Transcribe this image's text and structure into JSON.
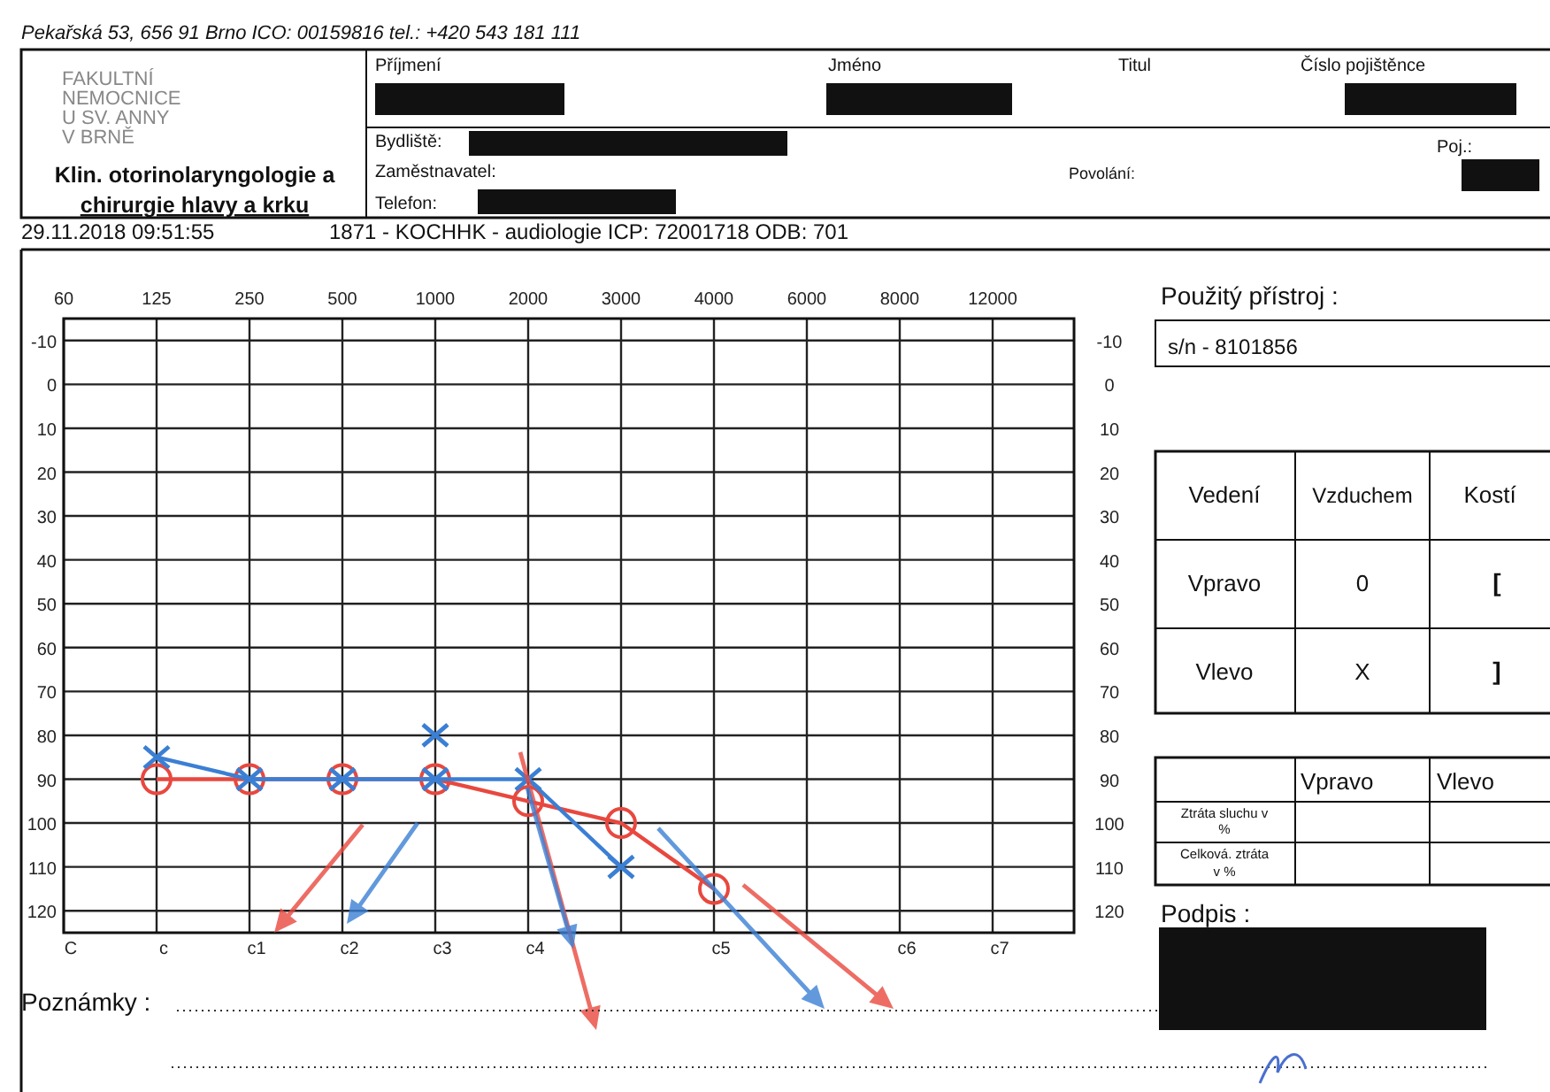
{
  "chart_data": [
    {
      "type": "line",
      "categories": [
        "60",
        "125",
        "250",
        "500",
        "1000",
        "2000",
        "3000",
        "4000",
        "6000",
        "8000",
        "12000"
      ],
      "series": [
        {
          "type": "line",
          "color": "#e8483f",
          "marker": "circle",
          "values": [
            null,
            90,
            90,
            90,
            90,
            95,
            100,
            115,
            null,
            null,
            null
          ]
        },
        {
          "type": "line",
          "color": "#3b7fd4",
          "marker": "cross",
          "values": [
            null,
            85,
            90,
            90,
            90,
            90,
            110,
            null,
            null,
            null,
            null
          ]
        },
        {
          "type": "scatter",
          "color": "#3b7fd4",
          "marker": "cross",
          "values": [
            null,
            null,
            null,
            null,
            80,
            null,
            null,
            null,
            null,
            null,
            null
          ]
        }
      ],
      "ylim": [
        125,
        -15
      ],
      "yticks": [
        -10,
        0,
        10,
        20,
        30,
        40,
        50,
        60,
        70,
        80,
        90,
        100,
        110,
        120
      ],
      "y2lim": [
        125,
        -15
      ],
      "y2ticks": [
        -10,
        0,
        10,
        20,
        30,
        40,
        50,
        60,
        70,
        80,
        90,
        100,
        110,
        120
      ],
      "grid": true,
      "annotations": [
        "C",
        "c",
        "c1",
        "c2",
        "c3",
        "c4",
        "c5",
        "c6",
        "c7"
      ]
    },
    {
      "type": "other",
      "annotations": [
        "Pekařská 53, 656 91 Brno ICO: 00159816 tel.: +420 543 181 111",
        "FAKULTNÍ",
        "NEMOCNICE",
        "U SV. ANNY",
        "V BRNĚ",
        "Klin. otorinolaryngologie a",
        "chirurgie hlavy a krku",
        "Příjmení",
        "Jméno",
        "Titul",
        "Číslo pojištěnce",
        "Bydliště:",
        "Poj.:",
        "Zaměstnavatel:",
        "Povolání:",
        "Telefon:",
        "29.11.2018  09:51:55",
        "1871 - KOCHHK - audiologie  ICP: 72001718  ODB: 701",
        "Použitý přístroj :",
        "s/n - 8101856",
        "Vedení",
        "Vzduchem",
        "Kostí",
        "Vpravo",
        "0",
        "[",
        "Vlevo",
        "X",
        "]",
        "Vpravo",
        "Vlevo",
        "Ztráta sluchu v",
        "%",
        "Celková. ztráta",
        "v %",
        "Poznámky :",
        "Podpis :"
      ]
    }
  ]
}
